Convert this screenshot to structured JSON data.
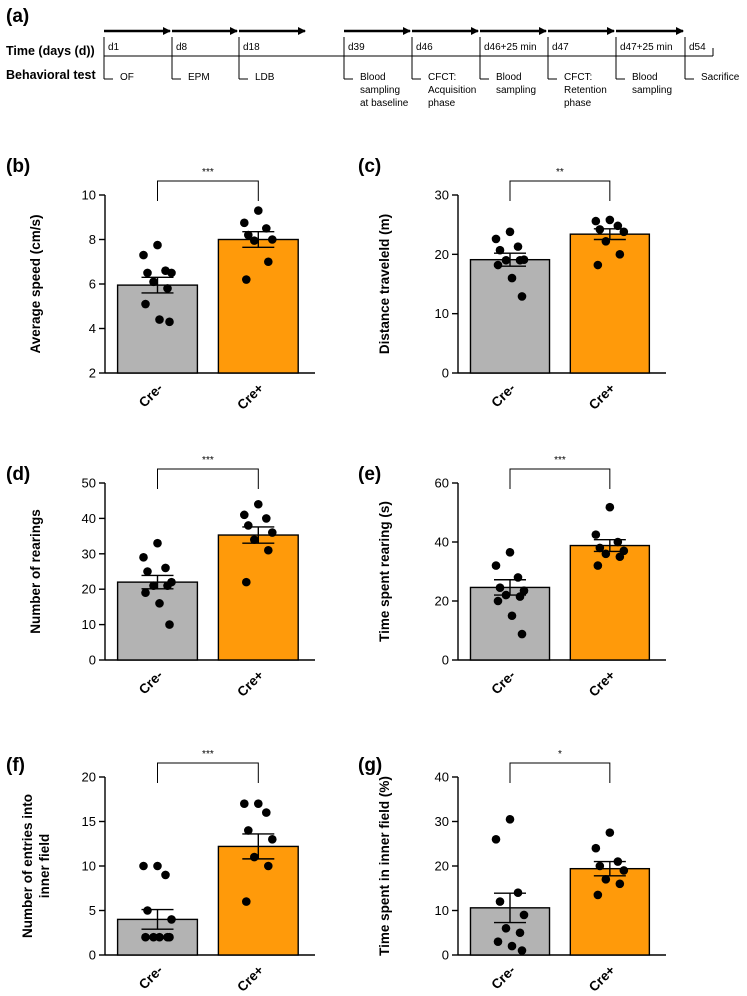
{
  "timeline": {
    "panel_label": "(a)",
    "time_label": "Time (days (d))",
    "test_label": "Behavioral test",
    "events": [
      {
        "day": "d1",
        "text": [
          "OF"
        ]
      },
      {
        "day": "d8",
        "text": [
          "EPM"
        ]
      },
      {
        "day": "d18",
        "text": [
          "LDB"
        ]
      },
      {
        "day": "d39",
        "text": [
          "Blood",
          "sampling",
          "at baseline"
        ]
      },
      {
        "day": "d46",
        "text": [
          "CFCT:",
          "Acquisition",
          "phase"
        ]
      },
      {
        "day": "d46+25 min",
        "text": [
          "Blood",
          "sampling"
        ]
      },
      {
        "day": "d47",
        "text": [
          "CFCT:",
          "Retention",
          "phase"
        ]
      },
      {
        "day": "d47+25 min",
        "text": [
          "Blood",
          "sampling"
        ]
      },
      {
        "day": "d54",
        "text": [
          "Sacrifice"
        ]
      }
    ]
  },
  "colors": {
    "cre_minus": "#b3b3b3",
    "cre_plus": "#ff9a0a",
    "axis": "#000000"
  },
  "chart_data": [
    {
      "panel": "(b)",
      "type": "bar",
      "categories": [
        "Cre-",
        "Cre+"
      ],
      "values": [
        5.95,
        8.0
      ],
      "sem": [
        0.35,
        0.35
      ],
      "ylabel": [
        "Average speed (cm/s)"
      ],
      "ylim": [
        2,
        10
      ],
      "yticks": [
        2,
        4,
        6,
        8,
        10
      ],
      "ytick_labels": [
        "2",
        "4",
        "6",
        "8",
        "10"
      ],
      "significance": "***",
      "points": [
        [
          7.75,
          7.3,
          6.6,
          6.5,
          6.5,
          6.1,
          5.8,
          5.1,
          4.4,
          4.3
        ],
        [
          9.3,
          8.75,
          8.5,
          8.2,
          8.0,
          7.95,
          7.0,
          6.2
        ]
      ]
    },
    {
      "panel": "(c)",
      "type": "bar",
      "categories": [
        "Cre-",
        "Cre+"
      ],
      "values": [
        19.1,
        23.4
      ],
      "sem": [
        1.1,
        0.9
      ],
      "ylabel": [
        "Distance traveleld (m)"
      ],
      "ylim": [
        0,
        30
      ],
      "yticks": [
        0,
        10,
        20,
        30
      ],
      "ytick_labels": [
        "0",
        "10",
        "20",
        "30"
      ],
      "significance": "**",
      "points": [
        [
          23.8,
          22.6,
          21.3,
          20.7,
          19.1,
          19.0,
          19.0,
          18.2,
          16.0,
          12.9
        ],
        [
          25.8,
          25.6,
          24.8,
          24.2,
          23.8,
          22.2,
          20.0,
          18.2
        ]
      ]
    },
    {
      "panel": "(d)",
      "type": "bar",
      "categories": [
        "Cre-",
        "Cre+"
      ],
      "values": [
        22.0,
        35.3
      ],
      "sem": [
        1.9,
        2.3
      ],
      "ylabel": [
        "Number of rearings"
      ],
      "ylim": [
        0,
        50
      ],
      "yticks": [
        0,
        10,
        20,
        30,
        40,
        50
      ],
      "ytick_labels": [
        "0",
        "10",
        "20",
        "30",
        "40",
        "50"
      ],
      "significance": "***",
      "points": [
        [
          33.0,
          29.0,
          26.0,
          25.0,
          22.0,
          21.0,
          21.0,
          19.0,
          16.0,
          10.0
        ],
        [
          44.0,
          41.0,
          40.0,
          38.0,
          36.0,
          34.0,
          31.0,
          22.0
        ]
      ]
    },
    {
      "panel": "(e)",
      "type": "bar",
      "categories": [
        "Cre-",
        "Cre+"
      ],
      "values": [
        24.6,
        38.8
      ],
      "sem": [
        2.6,
        2.0
      ],
      "ylabel": [
        "Time spent rearing (s)"
      ],
      "ylim": [
        0,
        60
      ],
      "yticks": [
        0,
        20,
        40,
        60
      ],
      "ytick_labels": [
        "0",
        "20",
        "40",
        "60"
      ],
      "significance": "***",
      "points": [
        [
          36.5,
          32.0,
          28.0,
          24.5,
          23.5,
          22.0,
          21.5,
          20.0,
          15.0,
          8.8
        ],
        [
          51.8,
          42.5,
          40.0,
          38.0,
          37.0,
          36.0,
          35.0,
          32.0
        ]
      ]
    },
    {
      "panel": "(f)",
      "type": "bar",
      "categories": [
        "Cre-",
        "Cre+"
      ],
      "values": [
        4.0,
        12.2
      ],
      "sem": [
        1.1,
        1.4
      ],
      "ylabel": [
        "Number of entries into",
        "inner field"
      ],
      "ylim": [
        0,
        20
      ],
      "yticks": [
        0,
        5,
        10,
        15,
        20
      ],
      "ytick_labels": [
        "0",
        "5",
        "10",
        "15",
        "20"
      ],
      "significance": "***",
      "points": [
        [
          10.0,
          10.0,
          9.0,
          5.0,
          4.0,
          2.0,
          2.0,
          2.0,
          2.0,
          2.0
        ],
        [
          17.0,
          17.0,
          16.0,
          14.0,
          13.0,
          11.0,
          10.0,
          6.0
        ]
      ]
    },
    {
      "panel": "(g)",
      "type": "bar",
      "categories": [
        "Cre-",
        "Cre+"
      ],
      "values": [
        10.6,
        19.4
      ],
      "sem": [
        3.3,
        1.6
      ],
      "ylabel": [
        "Time spent in inner field (%)"
      ],
      "ylim": [
        0,
        40
      ],
      "yticks": [
        0,
        10,
        20,
        30,
        40
      ],
      "ytick_labels": [
        "0",
        "10",
        "20",
        "30",
        "40"
      ],
      "significance": "*",
      "points": [
        [
          30.5,
          26.0,
          14.0,
          12.0,
          9.0,
          6.0,
          5.0,
          3.0,
          2.0,
          1.0
        ],
        [
          27.5,
          24.0,
          21.0,
          20.0,
          19.0,
          17.0,
          16.0,
          13.5
        ]
      ]
    }
  ]
}
